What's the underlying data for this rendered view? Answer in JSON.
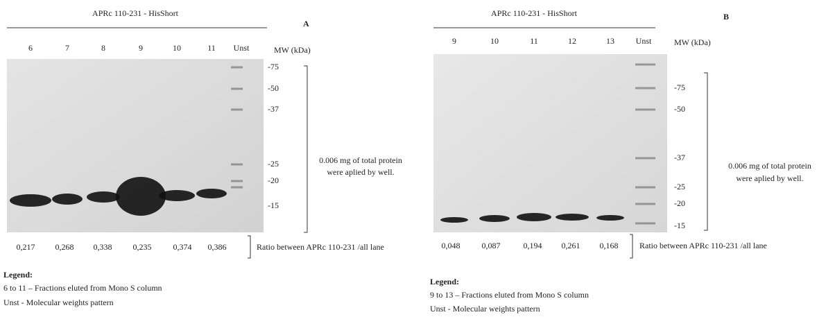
{
  "panels": [
    {
      "title": "APRc 110-231 - HisShort",
      "letter": "A",
      "lanes": [
        "6",
        "7",
        "8",
        "9",
        "10",
        "11",
        "Unst"
      ],
      "mw_label": "MW (kDa)",
      "mw_markers": [
        "-75",
        "-50",
        "-37",
        "-25",
        "-20",
        "-15"
      ],
      "note": [
        "0.006 mg of total protein",
        "were aplied by well."
      ],
      "ratios": [
        "0,217",
        "0,268",
        "0,338",
        "0,235",
        "0,374",
        "0,386"
      ],
      "ratio_label": "Ratio between APRc 110-231 /all lane",
      "legend": {
        "title": "Legend:",
        "lines": [
          "6 to 11 – Fractions eluted from Mono S column",
          "Unst - Molecular weights pattern"
        ]
      }
    },
    {
      "title": "APRc 110-231 - HisShort",
      "letter": "B",
      "lanes": [
        "9",
        "10",
        "11",
        "12",
        "13",
        "Unst"
      ],
      "mw_label": "MW (kDa)",
      "mw_markers": [
        "-75",
        "-50",
        "-37",
        "-25",
        "-20",
        "-15"
      ],
      "note": [
        "0.006 mg of total protein",
        "were aplied by well."
      ],
      "ratios": [
        "0,048",
        "0,087",
        "0,194",
        "0,261",
        "0,168"
      ],
      "ratio_label": "Ratio between APRc 110-231 /all lane",
      "legend": {
        "title": "Legend:",
        "lines": [
          "9 to 13 – Fractions eluted from Mono S column",
          "Unst - Molecular weights pattern"
        ]
      }
    }
  ]
}
